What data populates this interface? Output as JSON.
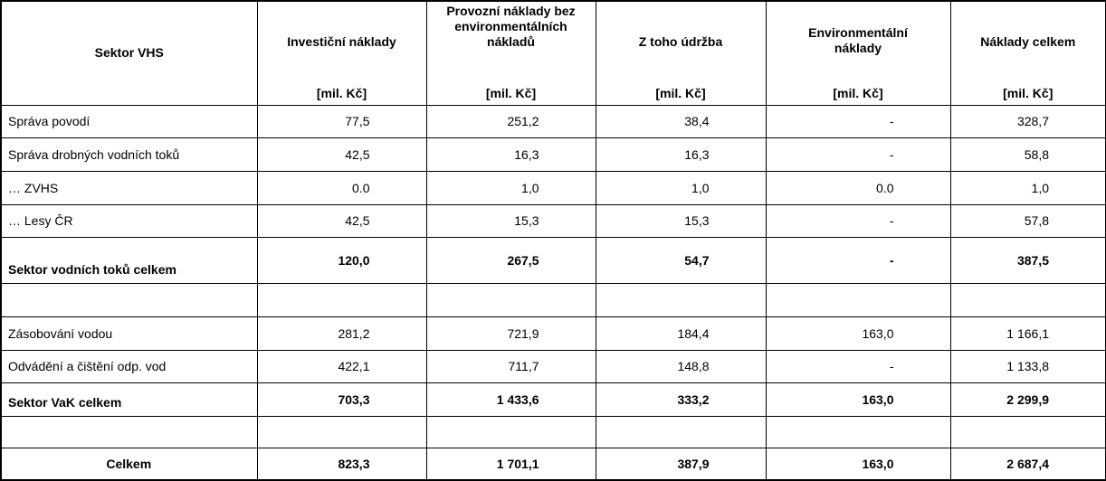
{
  "table": {
    "columns": [
      {
        "title": "Sektor VHS",
        "unit": ""
      },
      {
        "title": "Investiční náklady",
        "unit": "[mil. Kč]"
      },
      {
        "title": "Provozní náklady bez environmentálních nákladů",
        "unit": "[mil. Kč]"
      },
      {
        "title": "Z toho údržba",
        "unit": "[mil. Kč]"
      },
      {
        "title": "Environmentální náklady",
        "unit": "[mil. Kč]"
      },
      {
        "title": "Náklady celkem",
        "unit": "[mil. Kč]"
      }
    ],
    "rows": [
      {
        "label": "Správa povodí",
        "values": [
          "77,5",
          "251,2",
          "38,4",
          "-",
          "328,7"
        ],
        "style": "normal"
      },
      {
        "label": "Správa drobných vodních toků",
        "values": [
          "42,5",
          "16,3",
          "16,3",
          "-",
          "58,8"
        ],
        "style": "normal"
      },
      {
        "label": "… ZVHS",
        "values": [
          "0.0",
          "1,0",
          "1,0",
          "0.0",
          "1,0"
        ],
        "style": "normal"
      },
      {
        "label": "… Lesy ČR",
        "values": [
          "42,5",
          "15,3",
          "15,3",
          "-",
          "57,8"
        ],
        "style": "normal"
      },
      {
        "label": "Sektor vodních toků celkem",
        "values": [
          "120,0",
          "267,5",
          "54,7",
          "-",
          "387,5"
        ],
        "style": "bold"
      },
      {
        "label": "",
        "values": [
          "",
          "",
          "",
          "",
          ""
        ],
        "style": "empty"
      },
      {
        "label": "Zásobování vodou",
        "values": [
          "281,2",
          "721,9",
          "184,4",
          "163,0",
          "1 166,1"
        ],
        "style": "normal"
      },
      {
        "label": "Odvádění a čištění odp. vod",
        "values": [
          "422,1",
          "711,7",
          "148,8",
          "-",
          "1 133,8"
        ],
        "style": "normal"
      },
      {
        "label": "Sektor VaK celkem",
        "values": [
          "703,3",
          "1 433,6",
          "333,2",
          "163,0",
          "2 299,9"
        ],
        "style": "bold"
      },
      {
        "label": "",
        "values": [
          "",
          "",
          "",
          "",
          ""
        ],
        "style": "empty"
      },
      {
        "label": "Celkem",
        "values": [
          "823,3",
          "1 701,1",
          "387,9",
          "163,0",
          "2 687,4"
        ],
        "style": "total"
      }
    ]
  }
}
